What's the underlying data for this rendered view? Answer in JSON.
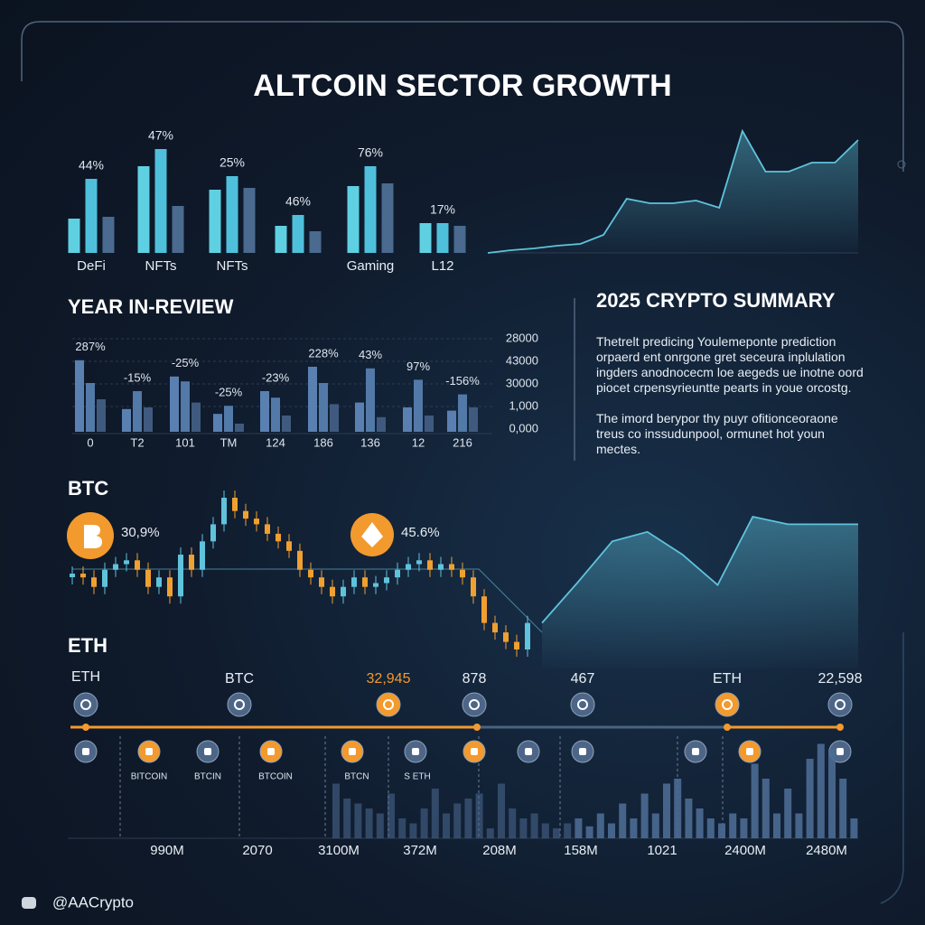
{
  "title": "ALTCOIN SECTOR GROWTH",
  "chart_data": [
    {
      "type": "bar",
      "categories": [
        "DeFi",
        "NFTs",
        "NFTs",
        null,
        "Gaming",
        "L12"
      ],
      "annotations": [
        "44%",
        "47%",
        "25%",
        "46%",
        "76%",
        "17%"
      ],
      "series": [
        {
          "color": "#5fd0e2",
          "values": [
            38,
            96,
            70,
            30,
            74,
            33
          ]
        },
        {
          "color": "#4fc0dc",
          "values": [
            82,
            115,
            85,
            42,
            96,
            33
          ]
        },
        {
          "color": "#4a6a8f",
          "values": [
            40,
            52,
            72,
            24,
            77,
            30
          ]
        }
      ],
      "ylim": [
        0,
        140
      ]
    },
    {
      "type": "area",
      "color": "#5fc3dc",
      "values": [
        0,
        3,
        5,
        8,
        10,
        20,
        60,
        55,
        55,
        58,
        50,
        135,
        90,
        90,
        100,
        100,
        125
      ],
      "ylim": [
        0,
        140
      ]
    },
    {
      "type": "bar",
      "title": "YEAR IN-REVIEW",
      "categories": [
        "0",
        "T2",
        "101",
        "TM",
        "124",
        "186",
        "136",
        "12",
        "216"
      ],
      "annotations": [
        "287%",
        "-15%",
        "-25%",
        "-25%",
        "-23%",
        "228%",
        "43%",
        "97%",
        "-156%"
      ],
      "side_labels": [
        "28000",
        "43000",
        "30000",
        "1,000",
        "0,000"
      ],
      "series": [
        {
          "color": "#5a80b2",
          "values": [
            88,
            28,
            68,
            22,
            50,
            80,
            36,
            30,
            26
          ]
        },
        {
          "color": "#5279a8",
          "values": [
            60,
            50,
            62,
            32,
            42,
            60,
            78,
            64,
            46
          ]
        },
        {
          "color": "#3f5a7e",
          "values": [
            40,
            30,
            36,
            10,
            20,
            34,
            18,
            20,
            30
          ]
        }
      ],
      "ylim": [
        0,
        100
      ]
    },
    {
      "type": "candlestick",
      "title": "BTC",
      "subtitle": "ETH",
      "annotations": [
        "30,9%",
        "45.6%"
      ],
      "up_color": "#5fc3dc",
      "down_color": "#f0a030",
      "values": [
        50,
        48,
        43,
        52,
        55,
        57,
        52,
        43,
        48,
        38,
        60,
        52,
        67,
        76,
        90,
        83,
        79,
        76,
        71,
        67,
        62,
        52,
        48,
        43,
        38,
        43,
        48,
        43,
        45,
        48,
        52,
        55,
        57,
        52,
        55,
        52,
        48,
        38,
        24,
        19,
        14,
        10,
        24
      ],
      "ylim": [
        0,
        100
      ]
    },
    {
      "type": "area",
      "color": "#5fc3dc",
      "values": [
        24,
        45,
        67,
        72,
        60,
        44,
        80,
        76,
        76,
        76
      ],
      "ylim": [
        0,
        100
      ]
    },
    {
      "type": "timeline",
      "top_labels": [
        "ETH",
        "BTC",
        "32,945",
        "878",
        "467",
        "ETH",
        "22,598"
      ],
      "bottom_labels": [
        "BITCOIN",
        "BTCIN",
        "BTCOIN",
        "BTCN",
        "S ETH"
      ]
    },
    {
      "type": "bar",
      "color": "#4d6b94",
      "values": [
        55,
        40,
        35,
        30,
        25,
        45,
        20,
        15,
        30,
        50,
        25,
        35,
        40,
        45,
        10,
        55,
        30,
        20,
        25,
        15,
        10,
        15,
        20,
        12,
        25,
        15,
        35,
        20,
        45,
        25,
        55,
        60,
        40,
        30,
        20,
        15,
        25,
        20,
        75,
        60,
        25,
        50,
        25,
        80,
        95,
        90,
        60,
        20
      ],
      "axis_labels": [
        "990M",
        "2070",
        "3100M",
        "372M",
        "208M",
        "158M",
        "1021",
        "2400M",
        "2480M"
      ],
      "ylim": [
        0,
        100
      ]
    }
  ],
  "summary": {
    "title": "2025 CRYPTO SUMMARY",
    "paragraphs": [
      "Thetrelt predicing Youlemeponte prediction orpaerd ent onrgone gret seceura inplulation ingders anodnocecm loe aegeds ue inotne oord piocet crpensyrieuntte pearts in youe orcostg.",
      "The imord berypor thy puyr ofitionceoraone treus co inssudunpool, ormunet hot youn mectes."
    ]
  },
  "footer": "@AACrypto"
}
